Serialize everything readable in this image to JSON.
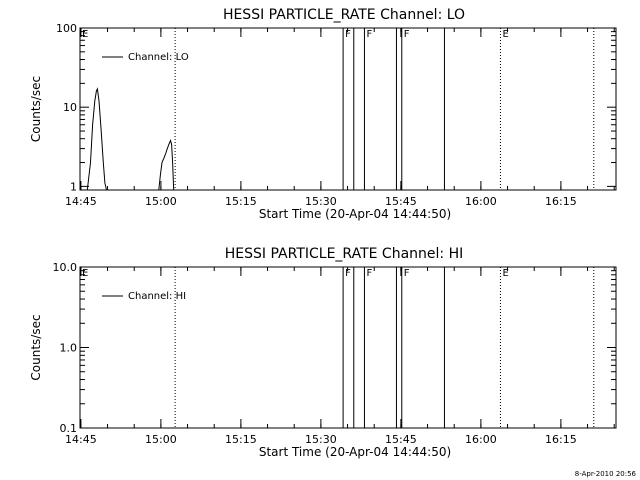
{
  "chart_data": [
    {
      "type": "line",
      "title": "HESSI PARTICLE_RATE Channel: LO",
      "xlabel": "Start Time (20-Apr-04 14:44:50)",
      "ylabel": "Counts/sec",
      "yscale": "log",
      "ylim": [
        0.9,
        100
      ],
      "xlim": [
        "14:44:50",
        "16:25:20"
      ],
      "x_ticks": [
        "14:45",
        "15:00",
        "15:15",
        "15:30",
        "15:45",
        "16:00",
        "16:15"
      ],
      "y_ticks": [
        "1",
        "10",
        "100"
      ],
      "legend": {
        "position": "top-left",
        "entries": [
          "Channel: LO"
        ]
      },
      "series": [
        {
          "name": "Channel: LO",
          "x": [
            "14:46:12",
            "14:46:48",
            "14:47:12",
            "14:47:36",
            "14:47:54",
            "14:48:06",
            "14:48:24",
            "14:48:48",
            "14:49:12",
            "14:49:30",
            "14:49:48",
            null,
            "14:59:36",
            "14:59:54",
            "15:00:12",
            "15:00:36",
            "15:00:54",
            "15:01:12",
            "15:01:30",
            "15:01:48",
            "15:02:00",
            "15:02:12",
            "15:02:24"
          ],
          "values": [
            0.9,
            2,
            6,
            12,
            16,
            17,
            12,
            5,
            2,
            1.1,
            0.9,
            null,
            0.9,
            1.4,
            2,
            2.3,
            2.6,
            3,
            3.4,
            3.8,
            3.4,
            2,
            0.9
          ]
        }
      ],
      "vlines": [
        {
          "time": "15:02:40",
          "style": "dotted",
          "label": ""
        },
        {
          "time": "15:34:10",
          "style": "solid",
          "label": "F"
        },
        {
          "time": "15:36:10",
          "style": "solid",
          "label": ""
        },
        {
          "time": "15:38:10",
          "style": "solid",
          "label": "F"
        },
        {
          "time": "15:44:10",
          "style": "solid",
          "label": ""
        },
        {
          "time": "15:45:10",
          "style": "solid",
          "label": "F"
        },
        {
          "time": "15:53:10",
          "style": "solid",
          "label": ""
        },
        {
          "time": "16:03:40",
          "style": "dotted",
          "label": "E"
        },
        {
          "time": "16:21:10",
          "style": "dotted",
          "label": ""
        }
      ],
      "start_label": "E"
    },
    {
      "type": "line",
      "title": "HESSI PARTICLE_RATE Channel: HI",
      "xlabel": "Start Time (20-Apr-04 14:44:50)",
      "ylabel": "Counts/sec",
      "yscale": "log",
      "ylim": [
        0.1,
        10
      ],
      "xlim": [
        "14:44:50",
        "16:25:20"
      ],
      "x_ticks": [
        "14:45",
        "15:00",
        "15:15",
        "15:30",
        "15:45",
        "16:00",
        "16:15"
      ],
      "y_ticks": [
        "0.1",
        "1.0",
        "10.0"
      ],
      "legend": {
        "position": "top-left",
        "entries": [
          "Channel: HI"
        ]
      },
      "series": [
        {
          "name": "Channel: HI",
          "x": [],
          "values": []
        }
      ],
      "vlines": [
        {
          "time": "15:02:40",
          "style": "dotted",
          "label": ""
        },
        {
          "time": "15:34:10",
          "style": "solid",
          "label": "F"
        },
        {
          "time": "15:36:10",
          "style": "solid",
          "label": ""
        },
        {
          "time": "15:38:10",
          "style": "solid",
          "label": "F"
        },
        {
          "time": "15:44:10",
          "style": "solid",
          "label": ""
        },
        {
          "time": "15:45:10",
          "style": "solid",
          "label": "F"
        },
        {
          "time": "15:53:10",
          "style": "solid",
          "label": ""
        },
        {
          "time": "16:03:40",
          "style": "dotted",
          "label": "E"
        },
        {
          "time": "16:21:10",
          "style": "dotted",
          "label": ""
        }
      ],
      "start_label": "E"
    }
  ],
  "footer": {
    "timestamp": "8-Apr-2010 20:56"
  },
  "colors": {
    "background": "#ffffff",
    "foreground": "#000000"
  }
}
